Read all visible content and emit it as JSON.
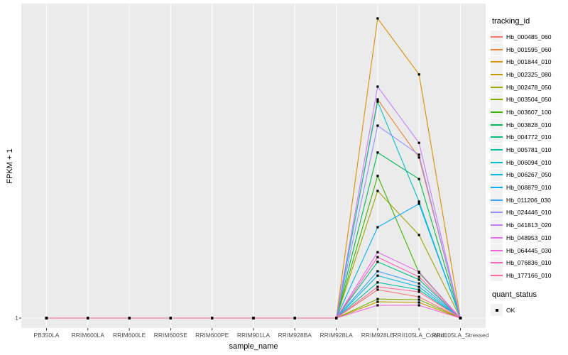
{
  "chart_data": {
    "type": "line",
    "title": "",
    "xlabel": "sample_name",
    "ylabel": "FPKM + 1",
    "y_tick_labels": [
      "1"
    ],
    "y_scale_note": "only labeled tick is 1 at the baseline; series values below are relative heights above that baseline (panel top = 1.0)",
    "grid": "vertical white gridlines per category on gray panel",
    "legend_position": "right",
    "categories": [
      "PB350LA",
      "RRIM600LA",
      "RRIM600LE",
      "RRIM600SE",
      "RRIM600PE",
      "RRIM901LA",
      "RRIM928BA",
      "RRIM928LA",
      "RRIM928LE",
      "RRII105LA_Control",
      "RRII105LA_Stressed"
    ],
    "series": [
      {
        "name": "Hb_000485_060",
        "color": "#F8766D",
        "values": [
          0,
          0,
          0,
          0,
          0,
          0,
          0,
          0,
          0.091,
          0.068,
          0
        ]
      },
      {
        "name": "Hb_001595_060",
        "color": "#EA8331",
        "values": [
          0,
          0,
          0,
          0,
          0,
          0,
          0,
          0,
          0.7,
          0.514,
          0
        ]
      },
      {
        "name": "Hb_001844_010",
        "color": "#D89000",
        "values": [
          0,
          0,
          0,
          0,
          0,
          0,
          0,
          0,
          0.959,
          0.78,
          0
        ]
      },
      {
        "name": "Hb_002325_080",
        "color": "#C09B00",
        "values": [
          0,
          0,
          0,
          0,
          0,
          0,
          0,
          0,
          0.052,
          0.05,
          0
        ]
      },
      {
        "name": "Hb_002478_050",
        "color": "#A3A500",
        "values": [
          0,
          0,
          0,
          0,
          0,
          0,
          0,
          0,
          0.407,
          0.266,
          0
        ]
      },
      {
        "name": "Hb_003504_050",
        "color": "#7CAE00",
        "values": [
          0,
          0,
          0,
          0,
          0,
          0,
          0,
          0,
          0.061,
          0.059,
          0
        ]
      },
      {
        "name": "Hb_003607_100",
        "color": "#39B600",
        "values": [
          0,
          0,
          0,
          0,
          0,
          0,
          0,
          0,
          0.455,
          0.145,
          0
        ]
      },
      {
        "name": "Hb_003828_010",
        "color": "#00BB4E",
        "values": [
          0,
          0,
          0,
          0,
          0,
          0,
          0,
          0,
          0.53,
          0.445,
          0
        ]
      },
      {
        "name": "Hb_004772_010",
        "color": "#00BF7D",
        "values": [
          0,
          0,
          0,
          0,
          0,
          0,
          0,
          0,
          0.18,
          0.123,
          0
        ]
      },
      {
        "name": "Hb_005781_010",
        "color": "#00C1A3",
        "values": [
          0,
          0,
          0,
          0,
          0,
          0,
          0,
          0,
          0.114,
          0.091,
          0
        ]
      },
      {
        "name": "Hb_006094_010",
        "color": "#00BFC4",
        "values": [
          0,
          0,
          0,
          0,
          0,
          0,
          0,
          0,
          0.693,
          0.373,
          0
        ]
      },
      {
        "name": "Hb_006267_050",
        "color": "#00BAE0",
        "values": [
          0,
          0,
          0,
          0,
          0,
          0,
          0,
          0,
          0.136,
          0.1,
          0
        ]
      },
      {
        "name": "Hb_008879_010",
        "color": "#00B0F6",
        "values": [
          0,
          0,
          0,
          0,
          0,
          0,
          0,
          0,
          0.291,
          0.366,
          0
        ]
      },
      {
        "name": "Hb_011206_030",
        "color": "#35A2FF",
        "values": [
          0,
          0,
          0,
          0,
          0,
          0,
          0,
          0,
          0.15,
          0.111,
          0
        ]
      },
      {
        "name": "Hb_024446_010",
        "color": "#9590FF",
        "values": [
          0,
          0,
          0,
          0,
          0,
          0,
          0,
          0,
          0.616,
          0.523,
          0
        ]
      },
      {
        "name": "Hb_041813_020",
        "color": "#C77CFF",
        "values": [
          0,
          0,
          0,
          0,
          0,
          0,
          0,
          0,
          0.741,
          0.561,
          0
        ]
      },
      {
        "name": "Hb_048953_010",
        "color": "#E76BF3",
        "values": [
          0,
          0,
          0,
          0,
          0,
          0,
          0,
          0,
          0.211,
          0.148,
          0
        ]
      },
      {
        "name": "Hb_064445_030",
        "color": "#FA62DB",
        "values": [
          0,
          0,
          0,
          0,
          0,
          0,
          0,
          0,
          0.041,
          0.041,
          0
        ]
      },
      {
        "name": "Hb_076836_010",
        "color": "#FF62BC",
        "values": [
          0,
          0,
          0,
          0,
          0,
          0,
          0,
          0,
          0.195,
          0.132,
          0
        ]
      },
      {
        "name": "Hb_177166_010",
        "color": "#FF6A98",
        "values": [
          0,
          0,
          0,
          0,
          0,
          0,
          0,
          0,
          0.1,
          0.084,
          0
        ]
      }
    ],
    "legend": {
      "tracking_title": "tracking_id",
      "quant_title": "quant_status",
      "quant_value": "OK"
    }
  },
  "colors": {
    "panel_bg": "#EBEBEB",
    "gridline": "#FFFFFF",
    "axis_text": "#4D4D4D",
    "tick_mark": "#333333",
    "point": "#000000",
    "legend_key_bg": "#F2F2F2"
  }
}
